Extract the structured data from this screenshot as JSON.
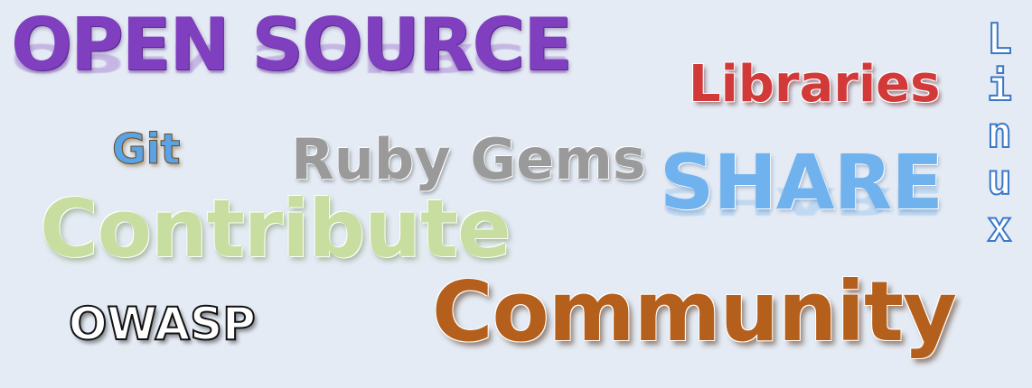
{
  "words": {
    "open_source": "OPEN SOURCE",
    "libraries": "Libraries",
    "linux": "Linux",
    "git": "Git",
    "ruby_gems": "Ruby Gems",
    "share": "SHARE",
    "contribute": "Contribute",
    "owasp": "OWASP",
    "community": "Community"
  },
  "colors": {
    "background": "#e4ebf4",
    "open_source": "#7f3fbf",
    "libraries": "#d23a3a",
    "linux": "#3a78c8",
    "git": "#5aa3e6",
    "ruby_gems": "#9a9a9a",
    "share": "#6fb2ee",
    "contribute": "#c7dea0",
    "owasp": "#111111",
    "community": "#b45f1c"
  }
}
